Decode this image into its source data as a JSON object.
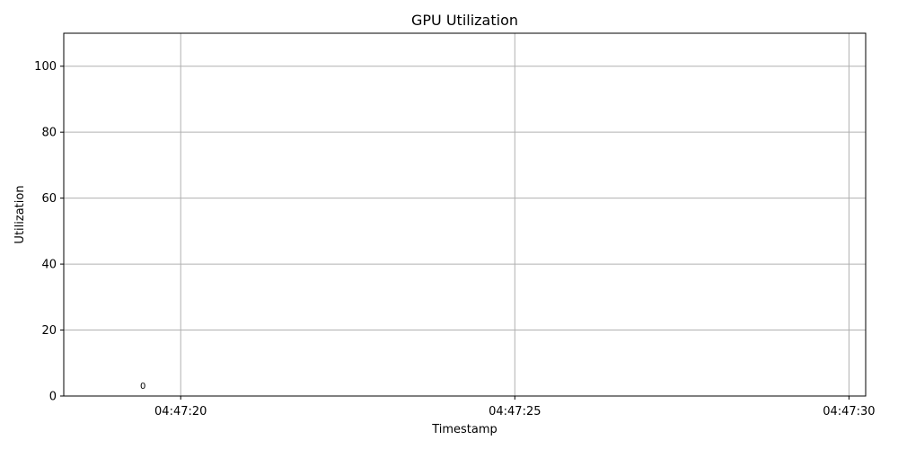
{
  "chart_data": {
    "type": "line",
    "title": "GPU Utilization",
    "xlabel": "Timestamp",
    "ylabel": "Utilization",
    "xlim": [
      "04:47:18.25",
      "04:47:30.25"
    ],
    "ylim": [
      0,
      110
    ],
    "x_ticks": [
      "04:47:20",
      "04:47:25",
      "04:47:30"
    ],
    "y_ticks": [
      0,
      20,
      40,
      60,
      80,
      100
    ],
    "grid": true,
    "legend": "none",
    "series": [
      {
        "x": [
          "04:47:19.5"
        ],
        "values": [
          0
        ],
        "labels": [
          "0"
        ]
      }
    ]
  }
}
